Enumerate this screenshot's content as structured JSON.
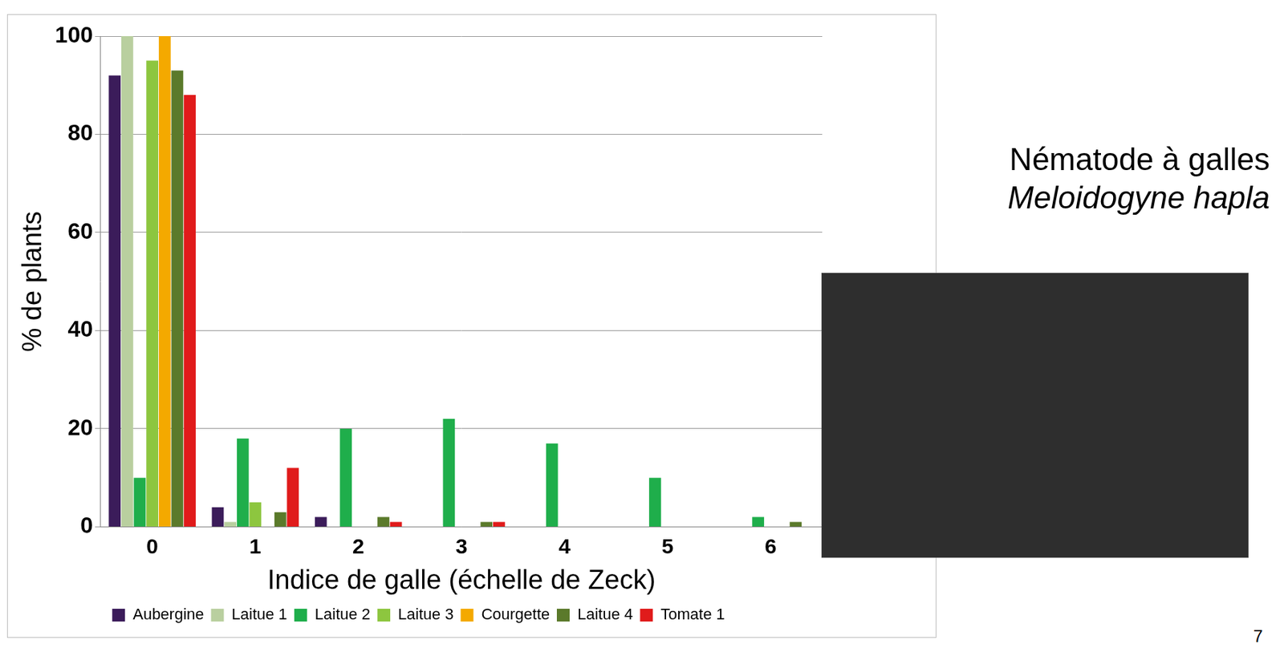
{
  "chart_data": {
    "type": "bar",
    "y_label": "% de plants",
    "x_label": "Indice de galle (échelle de Zeck)",
    "categories": [
      "0",
      "1",
      "2",
      "3",
      "4",
      "5",
      "6"
    ],
    "series": [
      {
        "name": "Aubergine",
        "color": "#3b1c5a",
        "values": [
          92,
          4,
          2,
          0,
          0,
          0,
          0
        ]
      },
      {
        "name": "Laitue 1",
        "color": "#b9cf9f",
        "values": [
          100,
          1,
          0,
          0,
          0,
          0,
          0
        ]
      },
      {
        "name": "Laitue 2",
        "color": "#1fae4b",
        "values": [
          10,
          18,
          20,
          22,
          17,
          10,
          2
        ]
      },
      {
        "name": "Laitue 3",
        "color": "#8dc63f",
        "values": [
          95,
          5,
          0,
          0,
          0,
          0,
          0
        ]
      },
      {
        "name": "Courgette",
        "color": "#f4a900",
        "values": [
          100,
          0,
          0,
          0,
          0,
          0,
          0
        ]
      },
      {
        "name": "Laitue 4",
        "color": "#5b7a2b",
        "values": [
          93,
          3,
          2,
          1,
          0,
          0,
          1
        ]
      },
      {
        "name": "Tomate 1",
        "color": "#e01b1b",
        "values": [
          88,
          12,
          1,
          1,
          0,
          0,
          0
        ]
      }
    ],
    "ylim": [
      0,
      100
    ],
    "yticks": [
      0,
      20,
      40,
      60,
      80,
      100
    ],
    "grid": true,
    "legend": "bottom",
    "annotations": [
      "Nématode à galles",
      "Meloidogyne hapla",
      "7"
    ]
  }
}
